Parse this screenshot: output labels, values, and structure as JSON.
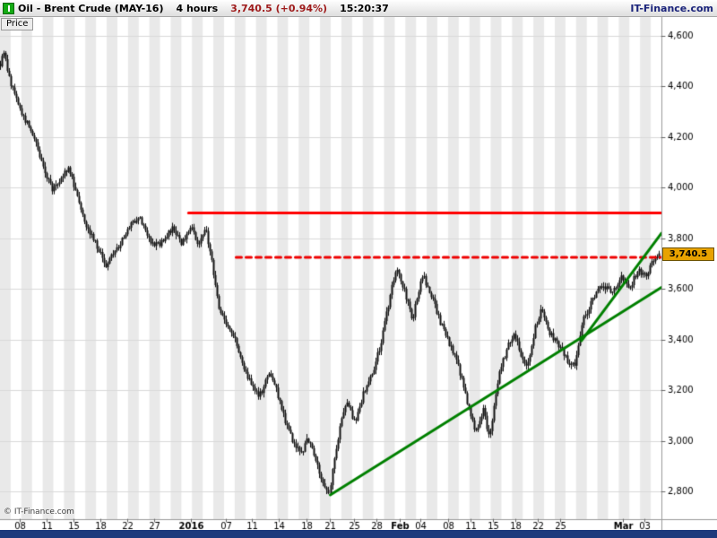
{
  "title_bar": {
    "instrument": "Oil - Brent Crude (MAY-16)",
    "timeframe": "4 hours",
    "quote": "3,740.5 (+0.94%)",
    "time": "15:20:37",
    "brand": "IT-Finance.com",
    "quote_color": "#9e1a1a",
    "brand_color": "#1a237a"
  },
  "price_tab": {
    "label": "Price"
  },
  "footer": {
    "copyright": "© IT-Finance.com"
  },
  "chart_data": {
    "type": "candlestick",
    "title": "Oil - Brent Crude (MAY-16)",
    "timeframe": "4 hours",
    "last_price": 3740.5,
    "last_price_label": "3,740.5",
    "change_pct": "+0.94%",
    "quote_time": "15:20:37",
    "candle_count": 368,
    "candle_color": "#111111",
    "grid_color": "#d9d9d9",
    "stripes": {
      "count": 62,
      "color": "#e9e9e9"
    },
    "y_axis": {
      "min": 2690,
      "max": 4674,
      "ticks": [
        {
          "label": "4,600",
          "value": 4600
        },
        {
          "label": "4,400",
          "value": 4400
        },
        {
          "label": "4,200",
          "value": 4200
        },
        {
          "label": "4,000",
          "value": 4000
        },
        {
          "label": "3,800",
          "value": 3800
        },
        {
          "label": "3,600",
          "value": 3600
        },
        {
          "label": "3,400",
          "value": 3400
        },
        {
          "label": "3,200",
          "value": 3200
        },
        {
          "label": "3,000",
          "value": 3000
        },
        {
          "label": "2,800",
          "value": 2800
        }
      ]
    },
    "x_axis": {
      "ticks": [
        {
          "label": "08",
          "t": 0.03
        },
        {
          "label": "11",
          "t": 0.071
        },
        {
          "label": "15",
          "t": 0.111
        },
        {
          "label": "18",
          "t": 0.152
        },
        {
          "label": "22",
          "t": 0.193
        },
        {
          "label": "27",
          "t": 0.233
        },
        {
          "label": "2016",
          "t": 0.289,
          "bold": true
        },
        {
          "label": "07",
          "t": 0.341
        },
        {
          "label": "11",
          "t": 0.381
        },
        {
          "label": "14",
          "t": 0.422
        },
        {
          "label": "18",
          "t": 0.463
        },
        {
          "label": "21",
          "t": 0.498
        },
        {
          "label": "25",
          "t": 0.535
        },
        {
          "label": "28",
          "t": 0.569
        },
        {
          "label": "Feb",
          "t": 0.605,
          "bold": true
        },
        {
          "label": "04",
          "t": 0.636
        },
        {
          "label": "08",
          "t": 0.677
        },
        {
          "label": "11",
          "t": 0.711
        },
        {
          "label": "15",
          "t": 0.745
        },
        {
          "label": "18",
          "t": 0.779
        },
        {
          "label": "22",
          "t": 0.813
        },
        {
          "label": "25",
          "t": 0.847
        },
        {
          "label": "Mar",
          "t": 0.942,
          "bold": true
        },
        {
          "label": "03",
          "t": 0.974
        }
      ]
    },
    "price_path_keypoints": [
      [
        0.0,
        4490
      ],
      [
        0.006,
        4530
      ],
      [
        0.014,
        4430
      ],
      [
        0.024,
        4350
      ],
      [
        0.035,
        4280
      ],
      [
        0.05,
        4210
      ],
      [
        0.065,
        4080
      ],
      [
        0.08,
        3990
      ],
      [
        0.092,
        4040
      ],
      [
        0.103,
        4080
      ],
      [
        0.115,
        3990
      ],
      [
        0.13,
        3860
      ],
      [
        0.145,
        3780
      ],
      [
        0.16,
        3690
      ],
      [
        0.172,
        3740
      ],
      [
        0.185,
        3790
      ],
      [
        0.197,
        3850
      ],
      [
        0.21,
        3890
      ],
      [
        0.225,
        3800
      ],
      [
        0.238,
        3770
      ],
      [
        0.25,
        3800
      ],
      [
        0.263,
        3840
      ],
      [
        0.276,
        3780
      ],
      [
        0.29,
        3840
      ],
      [
        0.3,
        3780
      ],
      [
        0.312,
        3840
      ],
      [
        0.322,
        3700
      ],
      [
        0.333,
        3520
      ],
      [
        0.346,
        3450
      ],
      [
        0.36,
        3380
      ],
      [
        0.373,
        3270
      ],
      [
        0.386,
        3190
      ],
      [
        0.398,
        3180
      ],
      [
        0.408,
        3280
      ],
      [
        0.42,
        3200
      ],
      [
        0.432,
        3090
      ],
      [
        0.445,
        3000
      ],
      [
        0.458,
        2950
      ],
      [
        0.468,
        3010
      ],
      [
        0.478,
        2930
      ],
      [
        0.49,
        2840
      ],
      [
        0.499,
        2790
      ],
      [
        0.512,
        3010
      ],
      [
        0.524,
        3160
      ],
      [
        0.538,
        3070
      ],
      [
        0.552,
        3200
      ],
      [
        0.565,
        3270
      ],
      [
        0.578,
        3390
      ],
      [
        0.59,
        3560
      ],
      [
        0.601,
        3690
      ],
      [
        0.613,
        3590
      ],
      [
        0.625,
        3480
      ],
      [
        0.64,
        3660
      ],
      [
        0.653,
        3580
      ],
      [
        0.666,
        3480
      ],
      [
        0.68,
        3390
      ],
      [
        0.695,
        3290
      ],
      [
        0.71,
        3140
      ],
      [
        0.722,
        3030
      ],
      [
        0.733,
        3130
      ],
      [
        0.742,
        3010
      ],
      [
        0.755,
        3240
      ],
      [
        0.768,
        3360
      ],
      [
        0.78,
        3430
      ],
      [
        0.798,
        3280
      ],
      [
        0.812,
        3450
      ],
      [
        0.822,
        3520
      ],
      [
        0.835,
        3420
      ],
      [
        0.848,
        3380
      ],
      [
        0.862,
        3310
      ],
      [
        0.872,
        3300
      ],
      [
        0.885,
        3480
      ],
      [
        0.9,
        3560
      ],
      [
        0.915,
        3620
      ],
      [
        0.928,
        3580
      ],
      [
        0.942,
        3650
      ],
      [
        0.955,
        3600
      ],
      [
        0.968,
        3680
      ],
      [
        0.98,
        3650
      ],
      [
        0.99,
        3710
      ],
      [
        1.0,
        3740.5
      ]
    ],
    "overlays": {
      "resistance_solid": {
        "style": "solid",
        "color": "#ff0000",
        "price": 3900,
        "t_start": 0.285,
        "t_end": 1.0
      },
      "resistance_dashed": {
        "style": "dashed",
        "color": "#ee0000",
        "price": 3725,
        "t_start": 0.357,
        "t_end": 1.0
      },
      "trendlines": [
        {
          "color": "#008000",
          "from": [
            0.4993,
            2786
          ],
          "to": [
            1.0,
            3606
          ]
        },
        {
          "color": "#008000",
          "from": [
            0.879,
            3395
          ],
          "to": [
            1.0,
            3820
          ]
        }
      ]
    }
  }
}
